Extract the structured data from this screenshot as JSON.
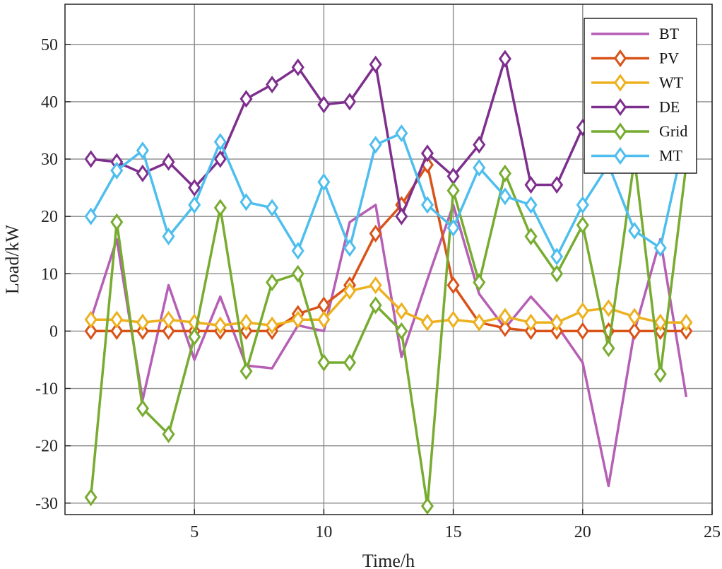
{
  "chart_data": {
    "type": "line",
    "xlabel": "Time/h",
    "ylabel": "Load/kW",
    "xlim": [
      0,
      25
    ],
    "ylim": [
      -32,
      57
    ],
    "xticks": [
      5,
      10,
      15,
      20,
      25
    ],
    "yticks": [
      -30,
      -20,
      -10,
      0,
      10,
      20,
      30,
      40,
      50
    ],
    "grid": true,
    "legend_position": "top-right",
    "x": [
      1,
      2,
      3,
      4,
      5,
      6,
      7,
      8,
      9,
      10,
      11,
      12,
      13,
      14,
      15,
      16,
      17,
      18,
      19,
      20,
      21,
      22,
      23,
      24
    ],
    "series": [
      {
        "name": "BT",
        "color": "#b55fb5",
        "marker": "none",
        "values": [
          2,
          16,
          -12,
          8,
          -5,
          6,
          -6,
          -6.5,
          1,
          0,
          19,
          22,
          -4.5,
          9,
          22,
          6.5,
          0.5,
          6,
          1,
          -5.5,
          -27,
          0,
          16,
          -11.5
        ]
      },
      {
        "name": "PV",
        "color": "#d95319",
        "marker": "diamond",
        "values": [
          0,
          0,
          0,
          0,
          0,
          0,
          0,
          0,
          3,
          4.5,
          8,
          17,
          22,
          29,
          8,
          1.5,
          0.5,
          0,
          0,
          0,
          0,
          0,
          0,
          0
        ]
      },
      {
        "name": "WT",
        "color": "#edb120",
        "marker": "diamond",
        "values": [
          2,
          2,
          1.5,
          2,
          1.5,
          1,
          1.5,
          1,
          2,
          2,
          7,
          8,
          3.5,
          1.5,
          2,
          1.5,
          2.5,
          1.5,
          1.5,
          3.5,
          4,
          2.5,
          1.5,
          1.5
        ]
      },
      {
        "name": "DE",
        "color": "#7e2f8e",
        "marker": "diamond",
        "values": [
          30,
          29.5,
          27.5,
          29.5,
          25,
          30,
          40.5,
          43,
          46,
          39.5,
          40,
          46.5,
          20,
          31,
          27,
          32.5,
          47.5,
          25.5,
          25.5,
          35.5,
          35,
          36,
          33,
          32
        ]
      },
      {
        "name": "Grid",
        "color": "#77ac30",
        "marker": "diamond",
        "values": [
          -29,
          19,
          -13.5,
          -18,
          -1,
          21.5,
          -7,
          8.5,
          10,
          -5.5,
          -5.5,
          4.5,
          0,
          -30.5,
          24.5,
          8.5,
          27.5,
          16.5,
          10,
          18.5,
          -3,
          30,
          -7.5,
          29
        ]
      },
      {
        "name": "MT",
        "color": "#4dbeee",
        "marker": "diamond",
        "values": [
          20,
          28,
          31.5,
          16.5,
          22,
          33,
          22.5,
          21.5,
          14,
          26,
          14.5,
          32.5,
          34.5,
          22,
          18,
          28.5,
          23.5,
          22,
          13,
          22,
          29,
          17.5,
          14.5,
          35
        ]
      }
    ]
  }
}
